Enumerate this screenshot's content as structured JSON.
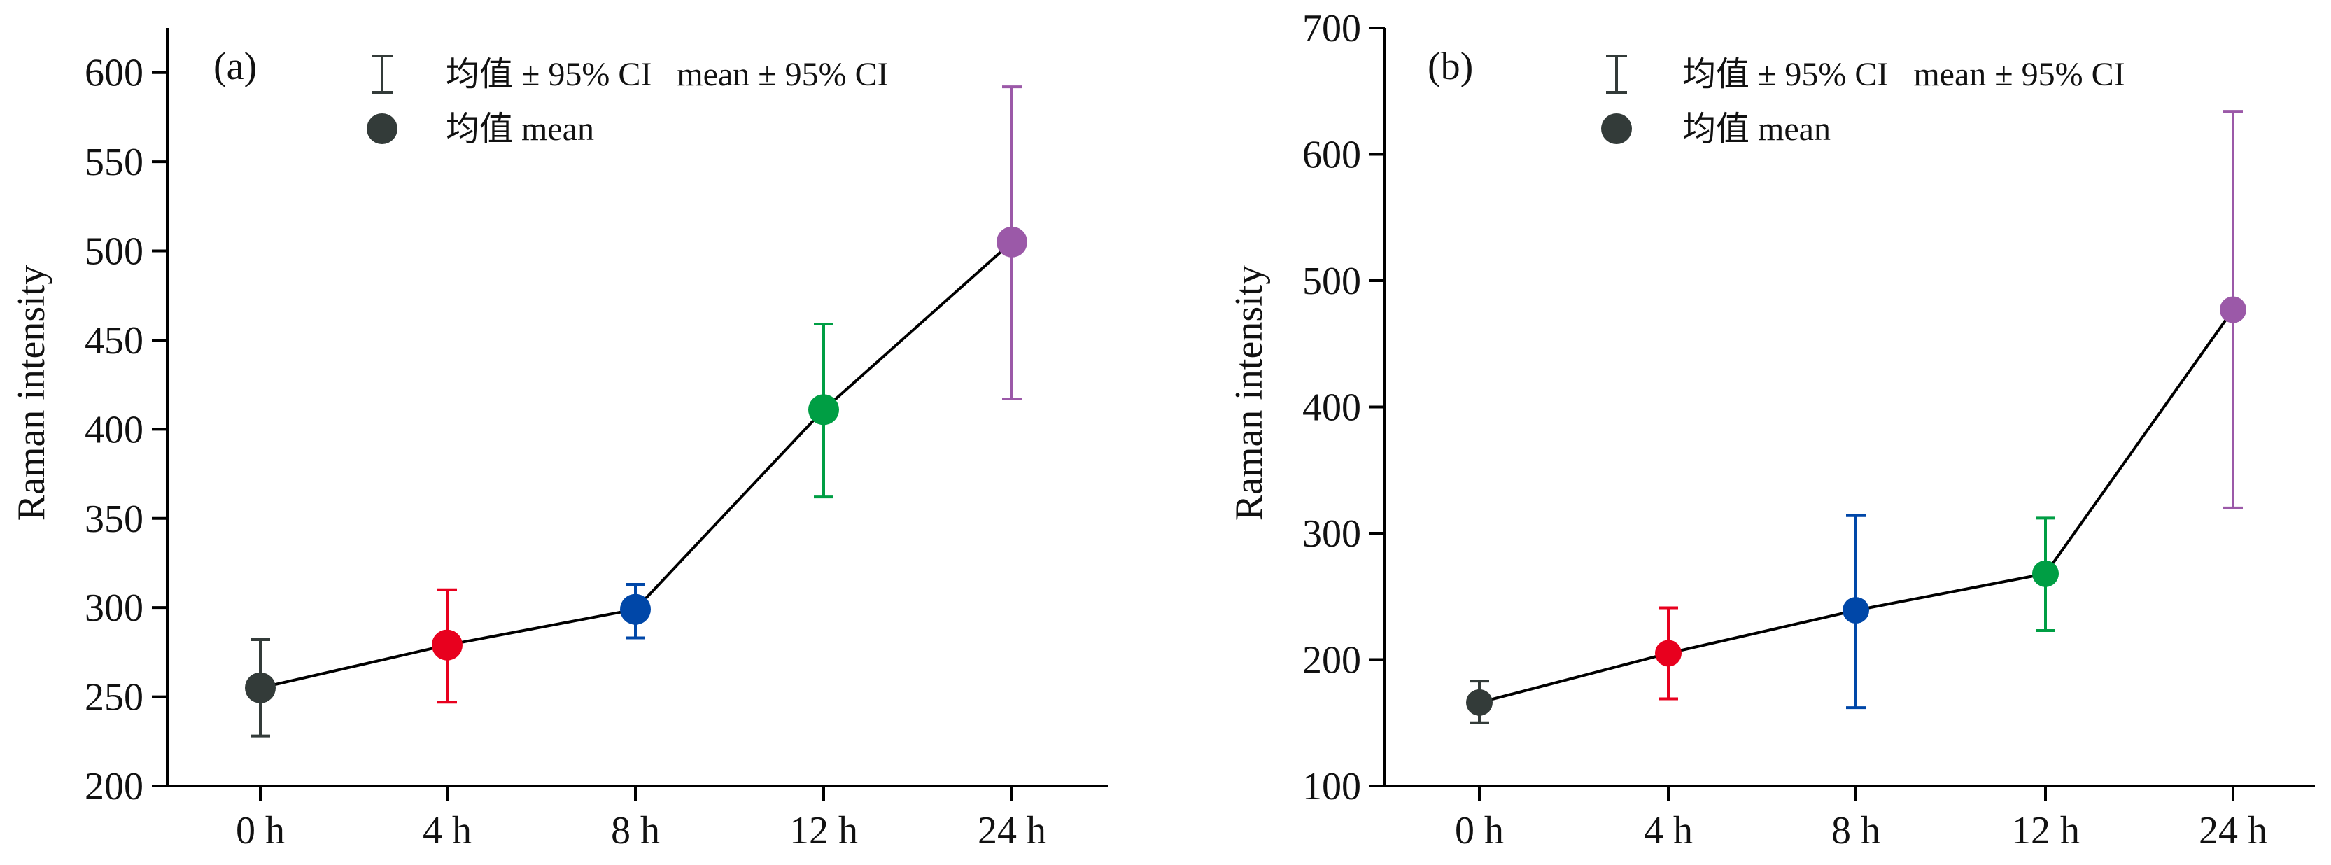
{
  "chart_data": [
    {
      "type": "line",
      "panel_label": "(a)",
      "ylabel": "Raman intensity",
      "xlabel": "",
      "categories": [
        "0 h",
        "4 h",
        "8 h",
        "12 h",
        "24 h"
      ],
      "ylim": [
        200,
        625
      ],
      "yticks": [
        200,
        250,
        300,
        350,
        400,
        450,
        500,
        550,
        600
      ],
      "series": [
        {
          "values": [
            255,
            279,
            299,
            411,
            505
          ],
          "ci_low": [
            228,
            247,
            283,
            362,
            417
          ],
          "ci_high": [
            282,
            310,
            313,
            459,
            592
          ]
        }
      ],
      "legend": {
        "ci_label": "均值 ± 95% CI   mean ± 95% CI",
        "mean_label": "均值 mean",
        "position": "top-center"
      },
      "grid": false
    },
    {
      "type": "line",
      "panel_label": "(b)",
      "ylabel": "Raman intensity",
      "xlabel": "",
      "categories": [
        "0 h",
        "4 h",
        "8 h",
        "12 h",
        "24 h"
      ],
      "ylim": [
        100,
        700
      ],
      "yticks": [
        100,
        200,
        300,
        400,
        500,
        600,
        700
      ],
      "series": [
        {
          "values": [
            166,
            205,
            239,
            268,
            477
          ],
          "ci_low": [
            150,
            169,
            162,
            223,
            320
          ],
          "ci_high": [
            183,
            241,
            314,
            312,
            634
          ]
        }
      ],
      "legend": {
        "ci_label": "均值 ± 95% CI   mean ± 95% CI",
        "mean_label": "均值 mean",
        "position": "top-center"
      },
      "grid": false
    }
  ],
  "colors": {
    "points": [
      "#333b39",
      "#e8001e",
      "#0047a8",
      "#009e44",
      "#9b59a8"
    ],
    "connector": "#000000",
    "axis": "#000000",
    "legend_marker": "#333b39"
  }
}
